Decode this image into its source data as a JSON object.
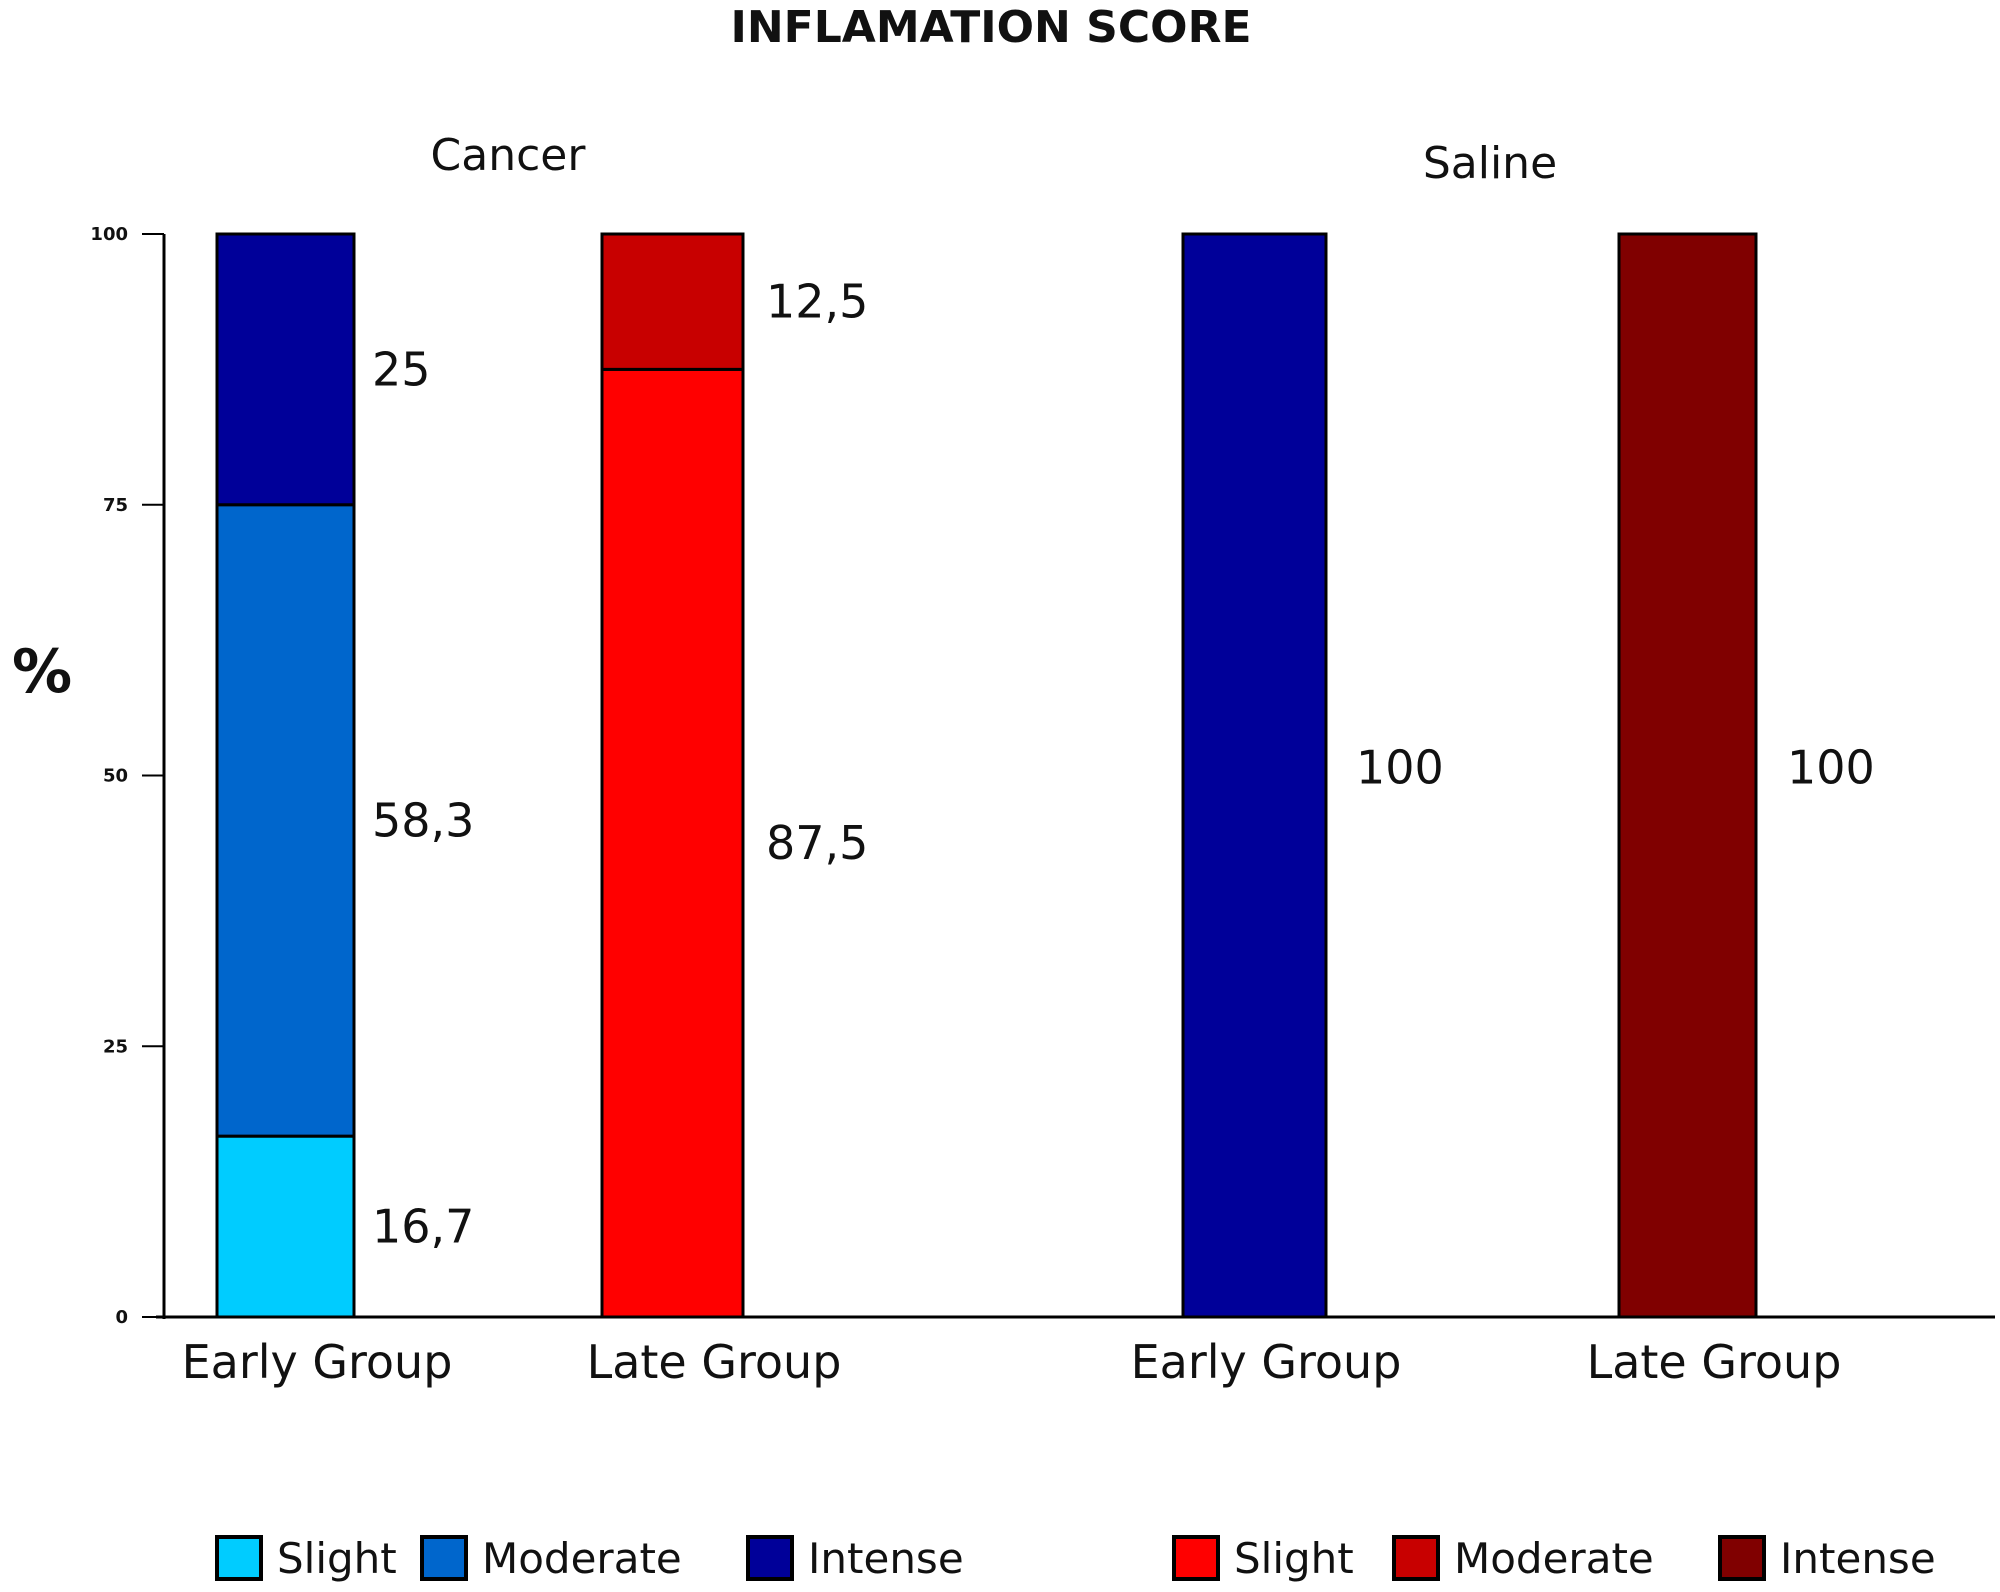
{
  "chart_data": {
    "type": "bar",
    "stacked": true,
    "title": "INFLAMATION SCORE",
    "ylabel": "%",
    "xlabel": "",
    "ylim": [
      0,
      100
    ],
    "yticks": [
      0,
      25,
      50,
      75,
      100
    ],
    "grid": false,
    "legend_position": "bottom",
    "panels": [
      {
        "name": "Cancer",
        "legend": [
          {
            "label": "Slight",
            "color": "#00ccff"
          },
          {
            "label": "Moderate",
            "color": "#0066cc"
          },
          {
            "label": "Intense",
            "color": "#000099"
          }
        ],
        "bars": [
          {
            "category": "Early Group",
            "segments": [
              {
                "level": "Slight",
                "value": 16.7,
                "label": "16,7",
                "color": "#00ccff"
              },
              {
                "level": "Moderate",
                "value": 58.3,
                "label": "58,3",
                "color": "#0066cc"
              },
              {
                "level": "Intense",
                "value": 25,
                "label": "25",
                "color": "#000099"
              }
            ]
          },
          {
            "category": "Late Group",
            "segments": [
              {
                "level": "Slight",
                "value": 87.5,
                "label": "87,5",
                "color": "#ff0000"
              },
              {
                "level": "Moderate",
                "value": 12.5,
                "label": "12,5",
                "color": "#c80000"
              }
            ]
          }
        ]
      },
      {
        "name": "Saline",
        "legend": [
          {
            "label": "Slight",
            "color": "#ff0000"
          },
          {
            "label": "Moderate",
            "color": "#c80000"
          },
          {
            "label": "Intense",
            "color": "#800000"
          }
        ],
        "bars": [
          {
            "category": "Early Group",
            "segments": [
              {
                "level": "Intense",
                "value": 100,
                "label": "100",
                "color": "#000099"
              }
            ]
          },
          {
            "category": "Late Group",
            "segments": [
              {
                "level": "Intense",
                "value": 100,
                "label": "100",
                "color": "#800000"
              }
            ]
          }
        ]
      }
    ]
  }
}
